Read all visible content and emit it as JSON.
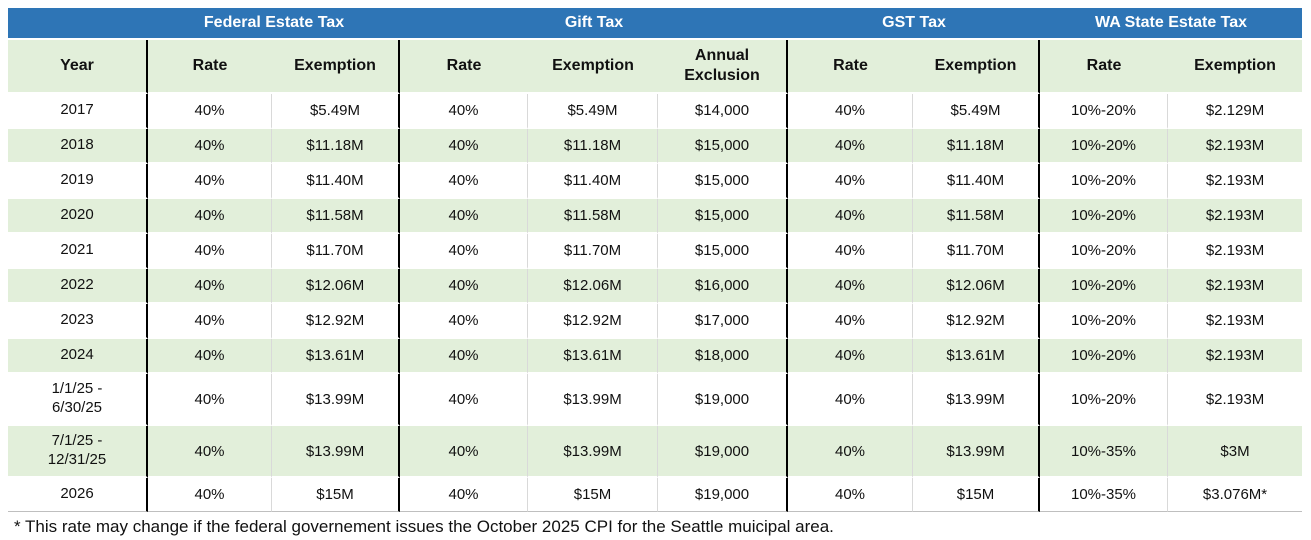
{
  "table": {
    "band": {
      "year_spacer": "",
      "sections": [
        {
          "label": "Federal Estate Tax"
        },
        {
          "label": "Gift Tax"
        },
        {
          "label": "GST Tax"
        },
        {
          "label": "WA State Estate Tax"
        }
      ]
    },
    "columns": [
      "Year",
      "Rate",
      "Exemption",
      "Rate",
      "Exemption",
      "Annual Exclusion",
      "Rate",
      "Exemption",
      "Rate",
      "Exemption"
    ],
    "rows": [
      [
        "2017",
        "40%",
        "$5.49M",
        "40%",
        "$5.49M",
        "$14,000",
        "40%",
        "$5.49M",
        "10%-20%",
        "$2.129M"
      ],
      [
        "2018",
        "40%",
        "$11.18M",
        "40%",
        "$11.18M",
        "$15,000",
        "40%",
        "$11.18M",
        "10%-20%",
        "$2.193M"
      ],
      [
        "2019",
        "40%",
        "$11.40M",
        "40%",
        "$11.40M",
        "$15,000",
        "40%",
        "$11.40M",
        "10%-20%",
        "$2.193M"
      ],
      [
        "2020",
        "40%",
        "$11.58M",
        "40%",
        "$11.58M",
        "$15,000",
        "40%",
        "$11.58M",
        "10%-20%",
        "$2.193M"
      ],
      [
        "2021",
        "40%",
        "$11.70M",
        "40%",
        "$11.70M",
        "$15,000",
        "40%",
        "$11.70M",
        "10%-20%",
        "$2.193M"
      ],
      [
        "2022",
        "40%",
        "$12.06M",
        "40%",
        "$12.06M",
        "$16,000",
        "40%",
        "$12.06M",
        "10%-20%",
        "$2.193M"
      ],
      [
        "2023",
        "40%",
        "$12.92M",
        "40%",
        "$12.92M",
        "$17,000",
        "40%",
        "$12.92M",
        "10%-20%",
        "$2.193M"
      ],
      [
        "2024",
        "40%",
        "$13.61M",
        "40%",
        "$13.61M",
        "$18,000",
        "40%",
        "$13.61M",
        "10%-20%",
        "$2.193M"
      ],
      [
        "1/1/25 -\n6/30/25",
        "40%",
        "$13.99M",
        "40%",
        "$13.99M",
        "$19,000",
        "40%",
        "$13.99M",
        "10%-20%",
        "$2.193M"
      ],
      [
        "7/1/25 -\n12/31/25",
        "40%",
        "$13.99M",
        "40%",
        "$13.99M",
        "$19,000",
        "40%",
        "$13.99M",
        "10%-35%",
        "$3M"
      ],
      [
        "2026",
        "40%",
        "$15M",
        "40%",
        "$15M",
        "$19,000",
        "40%",
        "$15M",
        "10%-35%",
        "$3.076M*"
      ]
    ],
    "footnote": "* This rate may change if the federal governement issues the October 2025 CPI for the Seattle muicipal area."
  },
  "colors": {
    "band_blue": "#2E75B6",
    "stripe_green": "#E2EFDA",
    "section_divider": "#000000",
    "gridline": "#d9d9d9",
    "text": "#111111",
    "band_text": "#ffffff"
  }
}
